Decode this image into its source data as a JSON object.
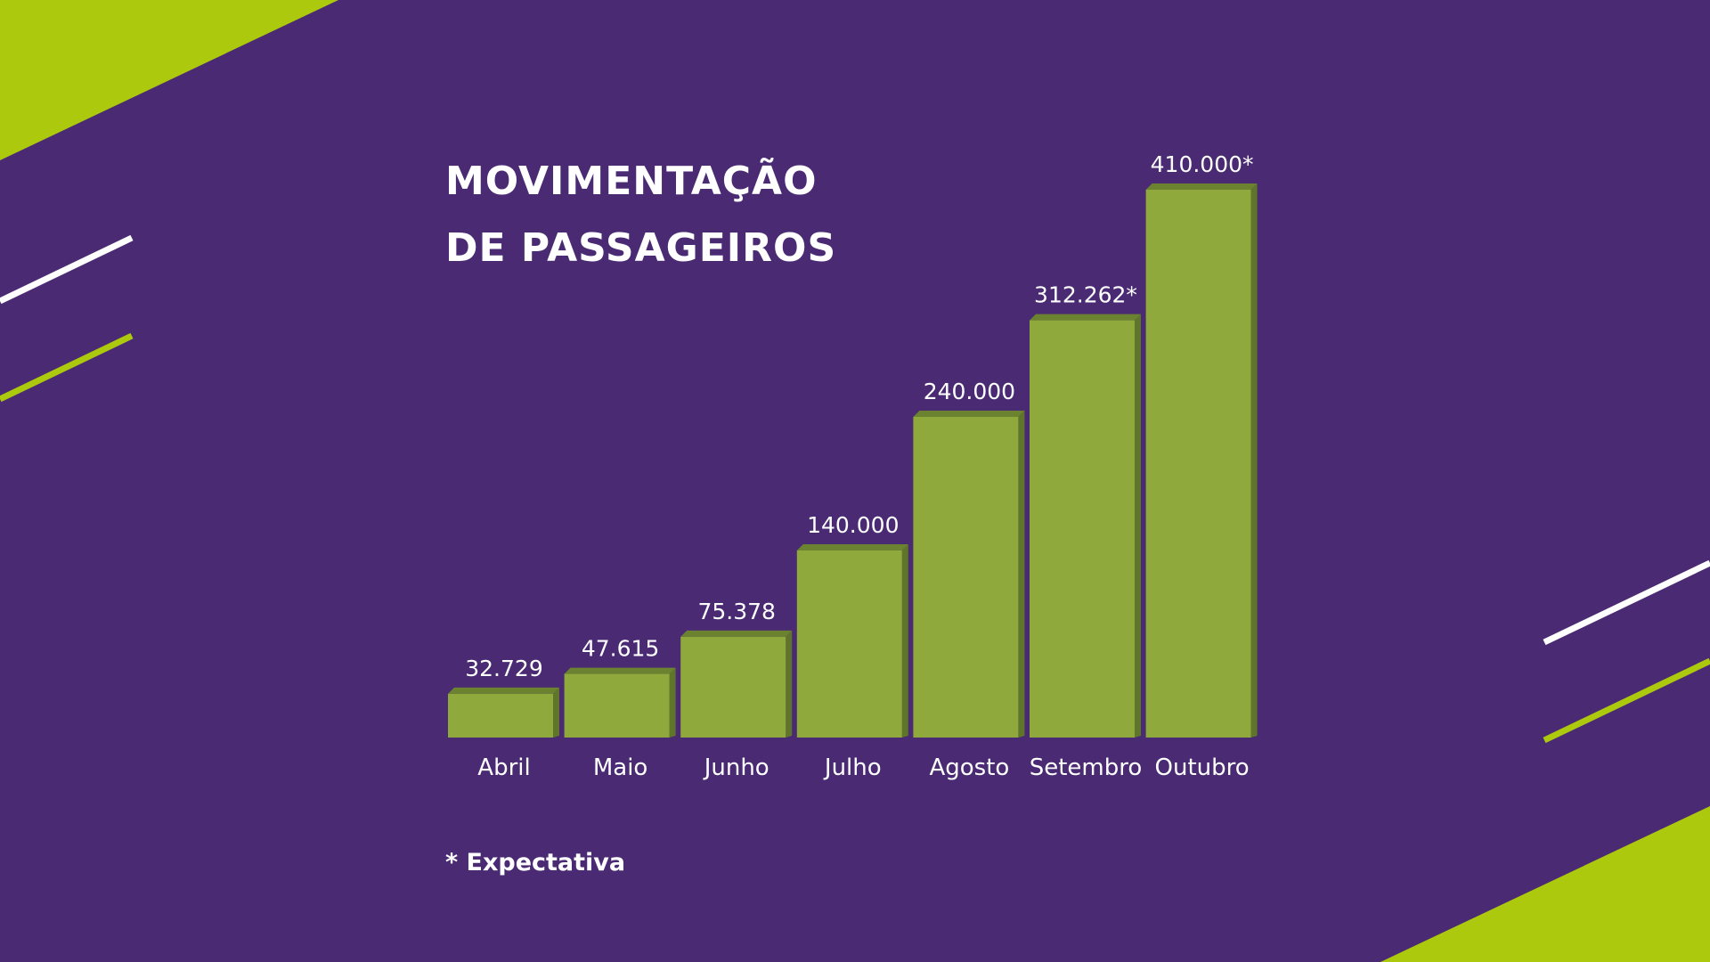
{
  "colors": {
    "background": "#4a2a73",
    "accent_lime": "#adc90e",
    "bar_face": "#8fa93c",
    "bar_top": "#6b8330",
    "bar_side": "#5f762a",
    "decor_white": "#ffffff",
    "text": "#ffffff"
  },
  "footnote": "* Expectativa",
  "chart_data": {
    "type": "bar",
    "title_lines": [
      "MOVIMENTAÇÃO",
      "DE PASSAGEIROS"
    ],
    "categories": [
      "Abril",
      "Maio",
      "Junho",
      "Julho",
      "Agosto",
      "Setembro",
      "Outubro"
    ],
    "values": [
      32729,
      47615,
      75378,
      140000,
      240000,
      312262,
      410000
    ],
    "value_labels": [
      "32.729",
      "47.615",
      "75.378",
      "140.000",
      "240.000",
      "312.262*",
      "410.000*"
    ],
    "xlabel": "",
    "ylabel": "",
    "ylim": [
      0,
      410000
    ],
    "grid": false,
    "legend": "none",
    "style": "3d"
  }
}
